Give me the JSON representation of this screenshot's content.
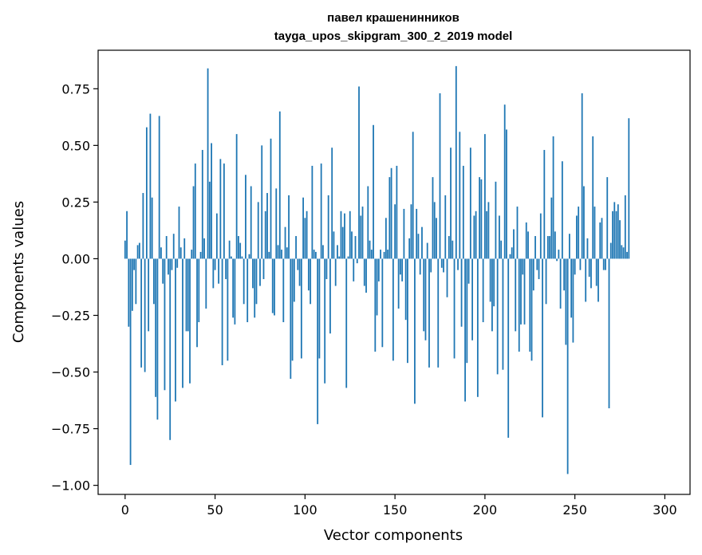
{
  "chart_data": {
    "type": "bar",
    "title": "павел крашенинников",
    "subtitle": "tayga_upos_skipgram_300_2_2019 model",
    "xlabel": "Vector components",
    "ylabel": "Components values",
    "xlim": [
      -15,
      314
    ],
    "ylim": [
      -1.04,
      0.92
    ],
    "xticks": [
      0,
      50,
      100,
      150,
      200,
      250,
      300
    ],
    "yticks": [
      -1.0,
      -0.75,
      -0.5,
      -0.25,
      0.0,
      0.25,
      0.5,
      0.75
    ],
    "ytick_labels": [
      "−1.00",
      "−0.75",
      "−0.50",
      "−0.25",
      "0.00",
      "0.25",
      "0.50",
      "0.75"
    ],
    "grid": false,
    "bar_color": "#1f77b4",
    "values": [
      0.08,
      0.21,
      -0.3,
      -0.91,
      -0.23,
      -0.05,
      -0.2,
      0.06,
      0.07,
      -0.48,
      0.29,
      -0.5,
      0.58,
      -0.32,
      0.64,
      0.27,
      -0.2,
      -0.61,
      -0.71,
      0.63,
      0.05,
      -0.11,
      -0.58,
      0.1,
      -0.07,
      -0.8,
      -0.05,
      0.11,
      -0.63,
      -0.04,
      0.23,
      0.05,
      -0.57,
      0.09,
      -0.32,
      -0.32,
      -0.55,
      0.04,
      0.32,
      0.42,
      -0.39,
      -0.28,
      0.03,
      0.48,
      0.09,
      -0.22,
      0.84,
      0.34,
      0.51,
      -0.13,
      -0.05,
      0.2,
      -0.11,
      0.44,
      -0.47,
      0.42,
      -0.09,
      -0.45,
      0.08,
      0.01,
      -0.26,
      -0.29,
      0.55,
      0.1,
      0.07,
      0.01,
      -0.2,
      0.37,
      -0.28,
      0.02,
      0.32,
      -0.13,
      -0.26,
      -0.2,
      0.25,
      -0.12,
      0.5,
      -0.09,
      0.21,
      0.29,
      0.03,
      0.53,
      -0.24,
      -0.25,
      0.31,
      0.06,
      0.65,
      0.04,
      -0.28,
      0.14,
      0.05,
      0.28,
      -0.53,
      -0.45,
      -0.19,
      0.1,
      -0.05,
      -0.12,
      -0.44,
      0.27,
      0.18,
      0.21,
      -0.14,
      -0.2,
      0.41,
      0.04,
      0.03,
      -0.73,
      -0.44,
      0.42,
      0.06,
      -0.55,
      -0.09,
      0.28,
      -0.33,
      0.49,
      0.12,
      -0.12,
      0.06,
      0.01,
      0.21,
      0.14,
      0.2,
      -0.57,
      0.01,
      0.21,
      0.12,
      -0.1,
      0.1,
      -0.02,
      0.76,
      0.19,
      0.23,
      -0.12,
      -0.15,
      0.32,
      0.08,
      0.04,
      0.59,
      -0.41,
      -0.25,
      -0.1,
      0.04,
      -0.39,
      0.03,
      0.18,
      0.04,
      0.36,
      0.4,
      -0.45,
      0.24,
      0.41,
      -0.22,
      -0.07,
      -0.1,
      0.22,
      -0.27,
      -0.46,
      0.09,
      0.24,
      0.56,
      -0.64,
      0.22,
      0.11,
      -0.07,
      0.14,
      -0.32,
      -0.36,
      0.07,
      -0.48,
      -0.06,
      0.36,
      0.25,
      0.18,
      -0.48,
      0.73,
      -0.04,
      -0.06,
      0.28,
      -0.17,
      0.1,
      0.49,
      0.08,
      -0.44,
      0.85,
      -0.05,
      0.56,
      -0.3,
      0.41,
      -0.63,
      -0.46,
      -0.11,
      0.49,
      -0.36,
      0.19,
      0.21,
      -0.61,
      0.36,
      0.35,
      -0.28,
      0.55,
      0.21,
      0.25,
      -0.19,
      -0.32,
      -0.21,
      0.34,
      -0.51,
      0.19,
      0.08,
      -0.49,
      0.68,
      0.57,
      -0.79,
      0.02,
      0.05,
      0.13,
      -0.32,
      0.23,
      -0.41,
      -0.29,
      -0.07,
      -0.29,
      0.16,
      0.12,
      -0.41,
      -0.45,
      -0.14,
      0.1,
      -0.05,
      -0.09,
      0.2,
      -0.7,
      0.48,
      -0.2,
      0.1,
      0.1,
      0.27,
      0.54,
      0.12,
      -0.01,
      0.04,
      -0.22,
      0.43,
      -0.14,
      -0.38,
      -0.95,
      0.11,
      -0.26,
      -0.37,
      -0.07,
      0.19,
      0.23,
      -0.05,
      0.73,
      0.32,
      -0.19,
      0.09,
      -0.08,
      -0.13,
      0.54,
      0.23,
      -0.12,
      -0.19,
      0.16,
      0.18,
      -0.05,
      -0.05,
      0.36,
      -0.66,
      0.07,
      0.21,
      0.25,
      0.21,
      0.24,
      0.17,
      0.06,
      0.05,
      0.28,
      0.03,
      0.62
    ]
  }
}
